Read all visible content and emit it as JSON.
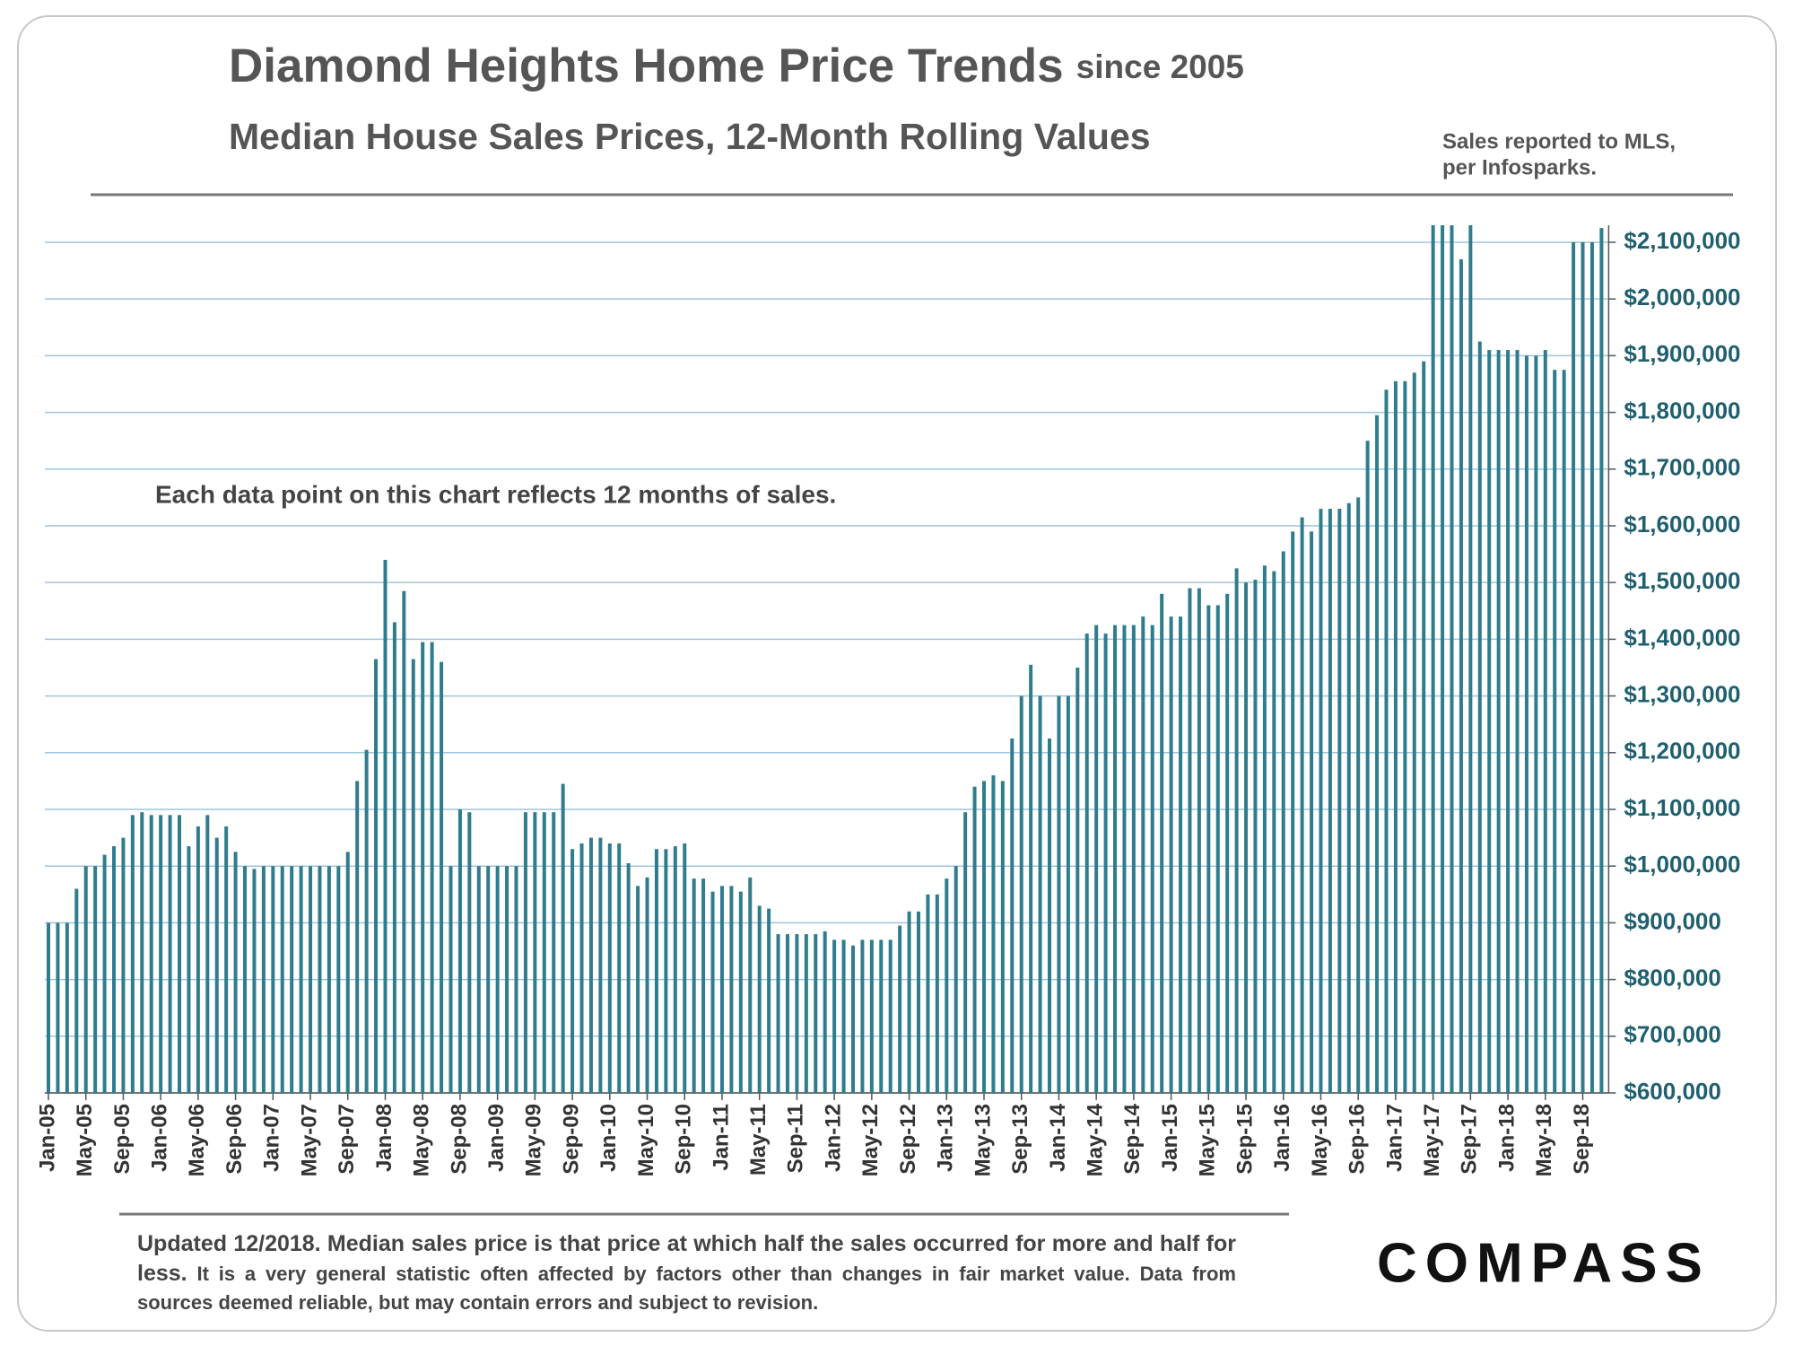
{
  "chart_data": {
    "type": "bar",
    "title": "Diamond Heights Home Price Trends",
    "title_suffix": "since 2005",
    "subtitle": "Median House Sales Prices, 12-Month Rolling Values",
    "source": [
      "Sales reported to MLS,",
      "per Infosparks."
    ],
    "annotation": "Each data point on this chart reflects 12 months of sales.",
    "footnote": [
      "Updated 12/2018. Median sales price is that price at which half the sales occurred for more and half for less.",
      "It is a very general statistic often affected by factors other than changes in fair market value.",
      "Data from sources deemed reliable, but may contain errors and subject to revision."
    ],
    "logo": "COMPASS",
    "color": "#2f7d8c",
    "grid": true,
    "categories": [
      "Jan-05",
      null,
      null,
      null,
      "May-05",
      null,
      null,
      null,
      "Sep-05",
      null,
      null,
      null,
      "Jan-06",
      null,
      null,
      null,
      "May-06",
      null,
      null,
      null,
      "Sep-06",
      null,
      null,
      null,
      "Jan-07",
      null,
      null,
      null,
      "May-07",
      null,
      null,
      null,
      "Sep-07",
      null,
      null,
      null,
      "Jan-08",
      null,
      null,
      null,
      "May-08",
      null,
      null,
      null,
      "Sep-08",
      null,
      null,
      null,
      "Jan-09",
      null,
      null,
      null,
      "May-09",
      null,
      null,
      null,
      "Sep-09",
      null,
      null,
      null,
      "Jan-10",
      null,
      null,
      null,
      "May-10",
      null,
      null,
      null,
      "Sep-10",
      null,
      null,
      null,
      "Jan-11",
      null,
      null,
      null,
      "May-11",
      null,
      null,
      null,
      "Sep-11",
      null,
      null,
      null,
      "Jan-12",
      null,
      null,
      null,
      "May-12",
      null,
      null,
      null,
      "Sep-12",
      null,
      null,
      null,
      "Jan-13",
      null,
      null,
      null,
      "May-13",
      null,
      null,
      null,
      "Sep-13",
      null,
      null,
      null,
      "Jan-14",
      null,
      null,
      null,
      "May-14",
      null,
      null,
      null,
      "Sep-14",
      null,
      null,
      null,
      "Jan-15",
      null,
      null,
      null,
      "May-15",
      null,
      null,
      null,
      "Sep-15",
      null,
      null,
      null,
      "Jan-16",
      null,
      null,
      null,
      "May-16",
      null,
      null,
      null,
      "Sep-16",
      null,
      null,
      null,
      "Jan-17",
      null,
      null,
      null,
      "May-17",
      null,
      null,
      null,
      "Sep-17",
      null,
      null,
      null,
      "Jan-18",
      null,
      null,
      null,
      "May-18",
      null,
      null,
      null,
      "Sep-18",
      null,
      null
    ],
    "values": [
      900000,
      900000,
      900000,
      960000,
      1000000,
      1000000,
      1020000,
      1035000,
      1050000,
      1090000,
      1095000,
      1090000,
      1090000,
      1090000,
      1090000,
      1035000,
      1070000,
      1090000,
      1050000,
      1070000,
      1025000,
      1000000,
      995000,
      1000000,
      1000000,
      1000000,
      1000000,
      1000000,
      1000000,
      1000000,
      1000000,
      1000000,
      1025000,
      1150000,
      1205000,
      1365000,
      1540000,
      1430000,
      1485000,
      1365000,
      1395000,
      1395000,
      1360000,
      1000000,
      1100000,
      1095000,
      1000000,
      1000000,
      1000000,
      1000000,
      1000000,
      1095000,
      1095000,
      1095000,
      1095000,
      1145000,
      1030000,
      1040000,
      1050000,
      1050000,
      1040000,
      1040000,
      1005000,
      965000,
      980000,
      1030000,
      1030000,
      1035000,
      1040000,
      978000,
      978000,
      955000,
      965000,
      965000,
      955000,
      980000,
      930000,
      925000,
      880000,
      880000,
      880000,
      880000,
      880000,
      885000,
      870000,
      870000,
      860000,
      870000,
      870000,
      870000,
      870000,
      895000,
      920000,
      920000,
      950000,
      950000,
      978000,
      1000000,
      1095000,
      1140000,
      1150000,
      1160000,
      1150000,
      1225000,
      1300000,
      1355000,
      1300000,
      1225000,
      1300000,
      1300000,
      1350000,
      1410000,
      1425000,
      1410000,
      1425000,
      1425000,
      1425000,
      1440000,
      1425000,
      1480000,
      1440000,
      1440000,
      1490000,
      1490000,
      1460000,
      1460000,
      1480000,
      1525000,
      1500000,
      1505000,
      1530000,
      1520000,
      1555000,
      1590000,
      1615000,
      1590000,
      1630000,
      1630000,
      1630000,
      1640000,
      1650000,
      1750000,
      1795000,
      1840000,
      1855000,
      1855000,
      1870000,
      1890000,
      2200000,
      2200000,
      2200000,
      2070000,
      2200000,
      1925000,
      1910000,
      1910000,
      1910000,
      1910000,
      1900000,
      1900000,
      1910000,
      1875000,
      1875000,
      2100000,
      2100000,
      2100000,
      2125000
    ],
    "ylim": [
      600000,
      2130000
    ],
    "yticks": [
      {
        "value": 600000,
        "label": "$600,000"
      },
      {
        "value": 700000,
        "label": "$700,000"
      },
      {
        "value": 800000,
        "label": "$800,000"
      },
      {
        "value": 900000,
        "label": "$900,000"
      },
      {
        "value": 1000000,
        "label": "$1,000,000"
      },
      {
        "value": 1100000,
        "label": "$1,100,000"
      },
      {
        "value": 1200000,
        "label": "$1,200,000"
      },
      {
        "value": 1300000,
        "label": "$1,300,000"
      },
      {
        "value": 1400000,
        "label": "$1,400,000"
      },
      {
        "value": 1500000,
        "label": "$1,500,000"
      },
      {
        "value": 1600000,
        "label": "$1,600,000"
      },
      {
        "value": 1700000,
        "label": "$1,700,000"
      },
      {
        "value": 1800000,
        "label": "$1,800,000"
      },
      {
        "value": 1900000,
        "label": "$1,900,000"
      },
      {
        "value": 2000000,
        "label": "$2,000,000"
      },
      {
        "value": 2100000,
        "label": "$2,100,000"
      }
    ]
  }
}
